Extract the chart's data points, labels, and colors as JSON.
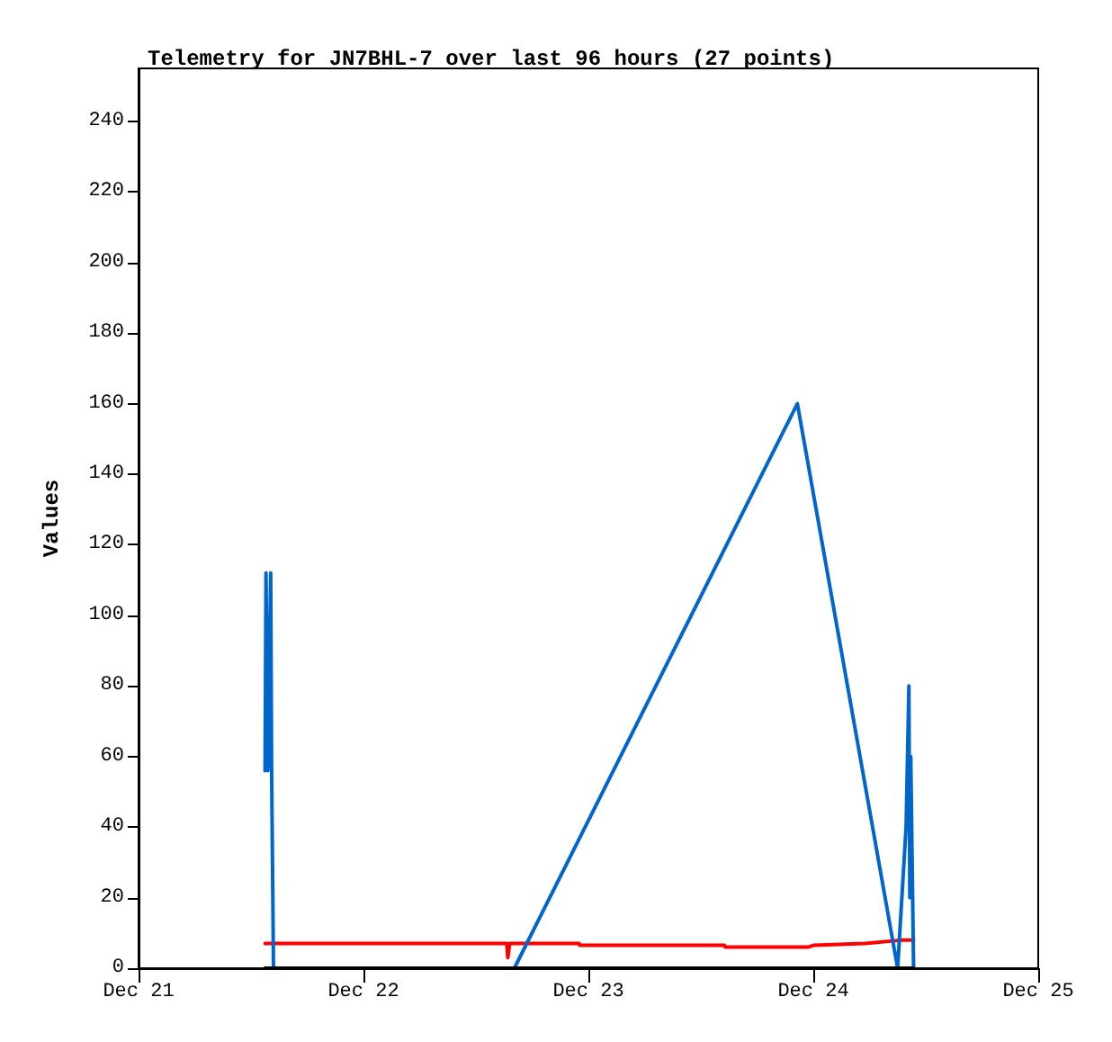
{
  "chart_data": {
    "type": "line",
    "title": "Telemetry for JN7BHL-7 over last 96 hours (27 points)",
    "ylabel": "Values",
    "xlim": [
      "--12-21",
      "--12-25"
    ],
    "xticks": [
      {
        "value": "--12-21",
        "label": "Dec 21"
      },
      {
        "value": "--12-22",
        "label": "Dec 22"
      },
      {
        "value": "--12-23",
        "label": "Dec 23"
      },
      {
        "value": "--12-24",
        "label": "Dec 24"
      },
      {
        "value": "--12-25",
        "label": "Dec 25"
      }
    ],
    "ylim": [
      0,
      255
    ],
    "yticks": [
      0,
      20,
      40,
      60,
      80,
      100,
      120,
      140,
      160,
      180,
      200,
      220,
      240
    ],
    "grid": false,
    "marker": "none",
    "line_style": "solid",
    "series": [
      {
        "color": "#ff0000",
        "x": [
          "--12-21T13:30",
          "--12-22T15:18",
          "--12-22T15:24",
          "--12-22T15:36",
          "--12-22T23:00",
          "--12-22T23:06",
          "--12-23T14:30",
          "--12-23T14:36",
          "--12-23T23:30",
          "--12-24T00:00",
          "--12-24T05:30",
          "--12-24T09:36",
          "--12-24T10:42"
        ],
        "values": [
          7,
          7,
          3,
          7,
          7,
          6.5,
          6.5,
          6,
          6,
          6.5,
          7,
          8,
          8
        ]
      },
      {
        "color": "#0066cc",
        "x": [
          "--12-21T13:30",
          "--12-21T13:36",
          "--12-21T13:48",
          "--12-21T14:06",
          "--12-21T14:12",
          "--12-21T14:24",
          "--12-22T16:06",
          "--12-23T22:18",
          "--12-24T09:00",
          "--12-24T09:54",
          "--12-24T10:12",
          "--12-24T10:18",
          "--12-24T10:24",
          "--12-24T10:36",
          "--12-24T10:42"
        ],
        "values": [
          56,
          112,
          56,
          112,
          56,
          0,
          0,
          160,
          0,
          40,
          80,
          20,
          60,
          20,
          0
        ]
      },
      {
        "color": "#000000",
        "x": [
          "--12-21T13:30",
          "--12-24T10:42"
        ],
        "values": [
          0,
          0
        ]
      }
    ]
  }
}
